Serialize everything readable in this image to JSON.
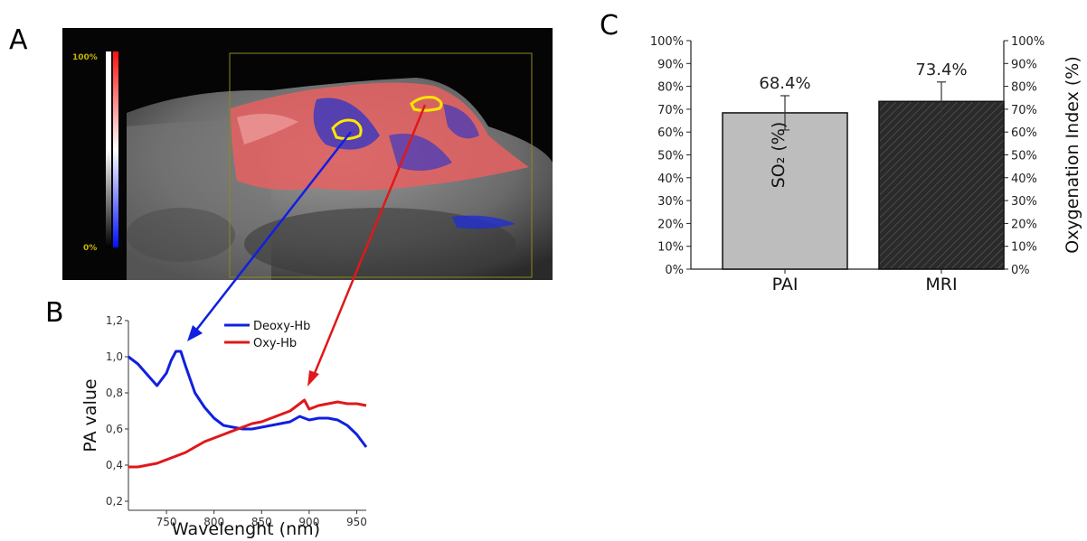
{
  "panels": {
    "a": {
      "letter": "A",
      "colorbar_top": "100%",
      "colorbar_bottom": "0%"
    },
    "b": {
      "letter": "B"
    },
    "c": {
      "letter": "C"
    }
  },
  "chart_data": [
    {
      "panel": "B",
      "type": "line",
      "xlabel": "Wavelenght (nm)",
      "ylabel": "PA value",
      "xlim": [
        710,
        960
      ],
      "ylim": [
        0.15,
        1.2
      ],
      "xticks": [
        "750",
        "800",
        "850",
        "900",
        "950"
      ],
      "xtick_values": [
        750,
        800,
        850,
        900,
        950
      ],
      "yticks": [
        "0,2",
        "0,4",
        "0,6",
        "0,8",
        "1,0",
        "1,2"
      ],
      "ytick_values": [
        0.2,
        0.4,
        0.6,
        0.8,
        1.0,
        1.2
      ],
      "legend": "top-right",
      "series": [
        {
          "name": "Deoxy-Hb",
          "color": "#1020e0",
          "x": [
            710,
            720,
            730,
            740,
            750,
            755,
            760,
            765,
            770,
            780,
            790,
            800,
            810,
            820,
            830,
            840,
            850,
            860,
            870,
            880,
            890,
            900,
            910,
            920,
            930,
            940,
            950,
            960
          ],
          "y": [
            1.0,
            0.96,
            0.9,
            0.84,
            0.91,
            0.98,
            1.03,
            1.03,
            0.95,
            0.8,
            0.72,
            0.66,
            0.62,
            0.61,
            0.6,
            0.6,
            0.61,
            0.62,
            0.63,
            0.64,
            0.67,
            0.65,
            0.66,
            0.66,
            0.65,
            0.62,
            0.57,
            0.5
          ]
        },
        {
          "name": "Oxy-Hb",
          "color": "#e0181a",
          "x": [
            710,
            720,
            730,
            740,
            750,
            760,
            770,
            780,
            790,
            800,
            810,
            820,
            830,
            840,
            850,
            860,
            870,
            880,
            890,
            895,
            900,
            910,
            920,
            930,
            940,
            950,
            960
          ],
          "y": [
            0.39,
            0.39,
            0.4,
            0.41,
            0.43,
            0.45,
            0.47,
            0.5,
            0.53,
            0.55,
            0.57,
            0.59,
            0.61,
            0.63,
            0.64,
            0.66,
            0.68,
            0.7,
            0.74,
            0.76,
            0.71,
            0.73,
            0.74,
            0.75,
            0.74,
            0.74,
            0.73
          ]
        }
      ]
    },
    {
      "panel": "C",
      "type": "bar",
      "categories": [
        "PAI",
        "MRI"
      ],
      "values": [
        68.4,
        73.4
      ],
      "errors": [
        7.5,
        8.5
      ],
      "value_labels": [
        "68.4%",
        "73.4%"
      ],
      "ylabel": "SO₂ (%)",
      "ylabel_right": "Oxygenation Index (%)",
      "ylim": [
        0,
        100
      ],
      "yticks": [
        "0%",
        "10%",
        "20%",
        "30%",
        "40%",
        "50%",
        "60%",
        "70%",
        "80%",
        "90%",
        "100%"
      ],
      "bar_colors": [
        "#bdbdbd",
        "#2a2a2a"
      ]
    }
  ]
}
